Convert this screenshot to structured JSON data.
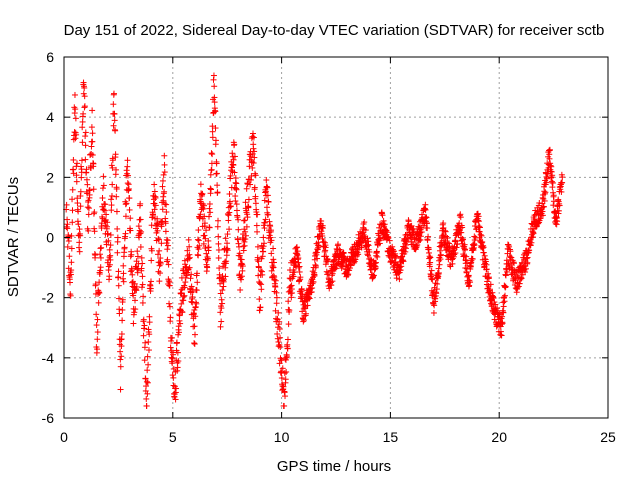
{
  "chart_data": {
    "type": "scatter",
    "title": "Day 151 of 2022, Sidereal Day-to-day VTEC variation (SDTVAR) for receiver sctb",
    "xlabel": "GPS time / hours",
    "ylabel": "SDTVAR / TECUs",
    "xlim": [
      0,
      25
    ],
    "ylim": [
      -6,
      6
    ],
    "x_ticks": [
      0,
      5,
      10,
      15,
      20,
      25
    ],
    "y_ticks": [
      -6,
      -4,
      -2,
      0,
      2,
      4,
      6
    ],
    "grid": true,
    "marker": "plus",
    "series": [
      {
        "name": "SDTVAR",
        "color": "#ff0000",
        "x_start": 0.1,
        "x_end": 22.9,
        "anchors": [
          [
            0.1,
            0.8
          ],
          [
            0.3,
            -1.5
          ],
          [
            0.5,
            4.5
          ],
          [
            0.7,
            -0.5
          ],
          [
            0.9,
            5.2
          ],
          [
            1.1,
            0.5
          ],
          [
            1.3,
            3.8
          ],
          [
            1.5,
            -3.5
          ],
          [
            1.8,
            1.5
          ],
          [
            2.1,
            -1.0
          ],
          [
            2.3,
            4.8
          ],
          [
            2.6,
            -4.5
          ],
          [
            2.9,
            2.5
          ],
          [
            3.2,
            -2.5
          ],
          [
            3.5,
            0.5
          ],
          [
            3.8,
            -5.5
          ],
          [
            4.1,
            1.5
          ],
          [
            4.4,
            -1.0
          ],
          [
            4.6,
            2.2
          ],
          [
            4.9,
            -3.0
          ],
          [
            5.1,
            -5.0
          ],
          [
            5.4,
            -2.0
          ],
          [
            5.7,
            -0.5
          ],
          [
            6.0,
            -3.0
          ],
          [
            6.3,
            1.5
          ],
          [
            6.6,
            -1.0
          ],
          [
            6.9,
            5.2
          ],
          [
            7.2,
            -2.5
          ],
          [
            7.5,
            0.0
          ],
          [
            7.8,
            3.0
          ],
          [
            8.1,
            -1.5
          ],
          [
            8.4,
            1.0
          ],
          [
            8.7,
            3.3
          ],
          [
            9.0,
            -2.0
          ],
          [
            9.3,
            1.5
          ],
          [
            9.6,
            -1.0
          ],
          [
            9.9,
            -3.5
          ],
          [
            10.1,
            -5.5
          ],
          [
            10.4,
            -1.5
          ],
          [
            10.7,
            -0.5
          ],
          [
            11.0,
            -2.5
          ],
          [
            11.4,
            -1.5
          ],
          [
            11.8,
            0.5
          ],
          [
            12.2,
            -1.5
          ],
          [
            12.6,
            -0.5
          ],
          [
            13.0,
            -1.0
          ],
          [
            13.4,
            -0.5
          ],
          [
            13.8,
            0.2
          ],
          [
            14.2,
            -1.2
          ],
          [
            14.6,
            0.5
          ],
          [
            15.0,
            -0.5
          ],
          [
            15.4,
            -1.2
          ],
          [
            15.8,
            0.3
          ],
          [
            16.2,
            -0.2
          ],
          [
            16.6,
            0.8
          ],
          [
            17.0,
            -2.2
          ],
          [
            17.4,
            0.2
          ],
          [
            17.8,
            -0.8
          ],
          [
            18.2,
            0.5
          ],
          [
            18.6,
            -1.5
          ],
          [
            19.0,
            0.8
          ],
          [
            19.4,
            -1.2
          ],
          [
            19.8,
            -2.5
          ],
          [
            20.1,
            -3.0
          ],
          [
            20.4,
            -0.5
          ],
          [
            20.8,
            -1.5
          ],
          [
            21.2,
            -0.8
          ],
          [
            21.6,
            0.5
          ],
          [
            22.0,
            1.0
          ],
          [
            22.3,
            2.8
          ],
          [
            22.6,
            0.5
          ],
          [
            22.9,
            2.0
          ]
        ]
      }
    ]
  }
}
